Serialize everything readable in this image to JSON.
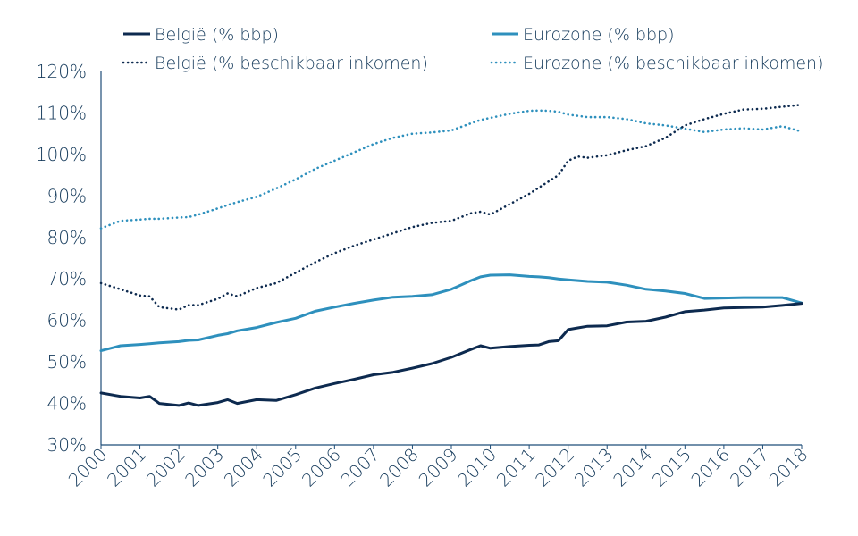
{
  "chart_data": {
    "type": "line",
    "title": "",
    "xlabel": "",
    "ylabel": "",
    "ylim": [
      30,
      120
    ],
    "y_ticks": [
      "30%",
      "40%",
      "50%",
      "60%",
      "70%",
      "80%",
      "90%",
      "100%",
      "110%",
      "120%"
    ],
    "y_tick_values": [
      30,
      40,
      50,
      60,
      70,
      80,
      90,
      100,
      110,
      120
    ],
    "x_ticks": [
      "2000",
      "2001",
      "2002",
      "2003",
      "2004",
      "2005",
      "2006",
      "2007",
      "2008",
      "2009",
      "2010",
      "2011",
      "2012",
      "2013",
      "2014",
      "2015",
      "2016",
      "2017",
      "2018"
    ],
    "x_tick_values": [
      2000,
      2001,
      2002,
      2003,
      2004,
      2005,
      2006,
      2007,
      2008,
      2009,
      2010,
      2011,
      2012,
      2013,
      2014,
      2015,
      2016,
      2017,
      2018
    ],
    "xlim": [
      2000,
      2018
    ],
    "grid": false,
    "legend_position": "top",
    "x": [
      2000.0,
      2000.5,
      2001.0,
      2001.25,
      2001.5,
      2002.0,
      2002.25,
      2002.5,
      2003.0,
      2003.25,
      2003.5,
      2004.0,
      2004.5,
      2005.0,
      2005.5,
      2006.0,
      2006.5,
      2007.0,
      2007.5,
      2008.0,
      2008.5,
      2009.0,
      2009.5,
      2009.75,
      2010.0,
      2010.5,
      2011.0,
      2011.25,
      2011.5,
      2011.75,
      2012.0,
      2012.25,
      2012.5,
      2013.0,
      2013.5,
      2014.0,
      2014.5,
      2015.0,
      2015.5,
      2016.0,
      2016.5,
      2017.0,
      2017.5,
      2018.0
    ],
    "series": [
      {
        "name": "België  (% bbp)",
        "color": "#0d2a4f",
        "style": "solid",
        "values": [
          42.5,
          41.7,
          41.3,
          41.7,
          40.0,
          39.5,
          40.1,
          39.5,
          40.2,
          40.9,
          40.0,
          40.9,
          40.7,
          42.1,
          43.7,
          44.8,
          45.8,
          46.9,
          47.5,
          48.5,
          49.6,
          51.1,
          53.0,
          53.9,
          53.3,
          53.7,
          54.0,
          54.1,
          54.9,
          55.1,
          57.8,
          58.2,
          58.6,
          58.7,
          59.6,
          59.8,
          60.8,
          62.1,
          62.5,
          63.0,
          63.1,
          63.2,
          63.6,
          64.1
        ]
      },
      {
        "name": "Eurozone (% bbp)",
        "color": "#2e90bd",
        "style": "solid",
        "values": [
          52.7,
          53.9,
          54.2,
          54.4,
          54.6,
          54.9,
          55.2,
          55.3,
          56.4,
          56.8,
          57.5,
          58.3,
          59.5,
          60.5,
          62.2,
          63.2,
          64.1,
          64.9,
          65.6,
          65.8,
          66.2,
          67.5,
          69.6,
          70.5,
          70.9,
          71.0,
          70.6,
          70.5,
          70.3,
          70.0,
          69.8,
          69.6,
          69.4,
          69.2,
          68.5,
          67.5,
          67.1,
          66.5,
          65.3,
          65.4,
          65.5,
          65.5,
          65.5,
          64.2
        ]
      },
      {
        "name": "België (% beschikbaar inkomen)",
        "color": "#0d2a4f",
        "style": "dotted",
        "values": [
          69.0,
          67.5,
          66.0,
          65.8,
          63.2,
          62.6,
          63.7,
          63.7,
          65.2,
          66.5,
          65.8,
          67.8,
          69.0,
          71.5,
          74.0,
          76.2,
          78.0,
          79.5,
          81.0,
          82.5,
          83.5,
          84.0,
          85.8,
          86.2,
          85.5,
          88.0,
          90.5,
          92.0,
          93.5,
          95.0,
          98.5,
          99.5,
          99.2,
          99.8,
          101.0,
          102.0,
          104.0,
          107.0,
          108.5,
          109.8,
          110.8,
          111.0,
          111.5,
          112.0
        ]
      },
      {
        "name": "Eurozone (% beschikbaar inkomen)",
        "color": "#2e90bd",
        "style": "dotted",
        "values": [
          82.2,
          84.0,
          84.3,
          84.5,
          84.5,
          84.8,
          84.9,
          85.5,
          87.0,
          87.8,
          88.5,
          89.8,
          91.8,
          94.0,
          96.5,
          98.5,
          100.5,
          102.5,
          104.0,
          105.0,
          105.3,
          105.8,
          107.5,
          108.3,
          108.8,
          109.8,
          110.5,
          110.6,
          110.5,
          110.3,
          109.6,
          109.3,
          109.0,
          109.0,
          108.5,
          107.5,
          107.0,
          106.2,
          105.4,
          106.0,
          106.3,
          106.0,
          106.8,
          105.5
        ]
      }
    ]
  }
}
